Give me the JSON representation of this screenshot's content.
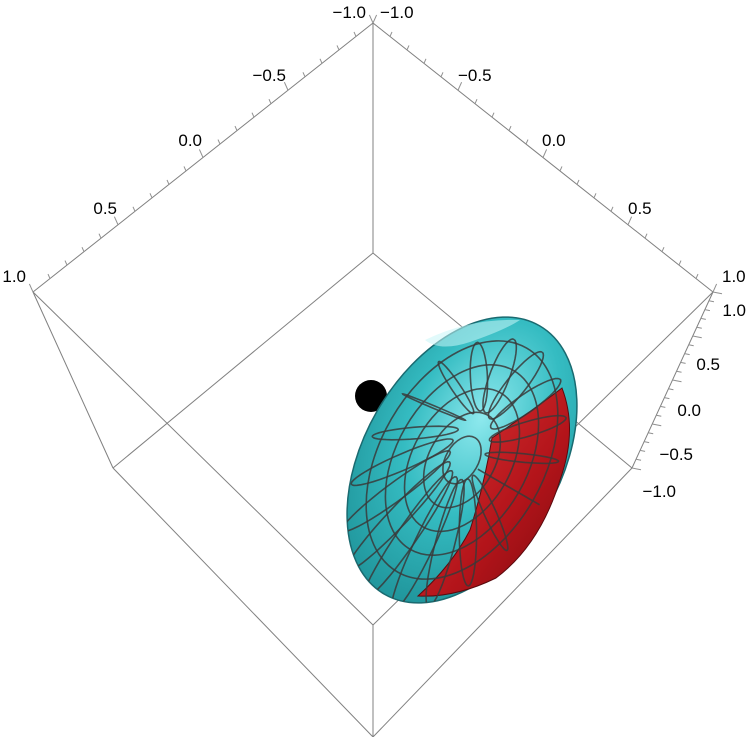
{
  "axes": {
    "left_axis": {
      "tick_labels": [
        "−1.0",
        "−0.5",
        "0.0",
        "0.5",
        "1.0"
      ]
    },
    "right_axis": {
      "tick_labels": [
        "−1.0",
        "−0.5",
        "0.0",
        "0.5",
        "1.0"
      ]
    },
    "vertical_axis": {
      "tick_labels": [
        "1.0",
        "0.5",
        "0.0",
        "−0.5",
        "−1.0"
      ]
    }
  },
  "colors": {
    "surface_outer": "#2bb3b8",
    "surface_highlight": "#8ee9ee",
    "surface_inner": "#c0181c",
    "mesh": "#3a3a3a",
    "marker": "#000000",
    "box": "#808080"
  }
}
